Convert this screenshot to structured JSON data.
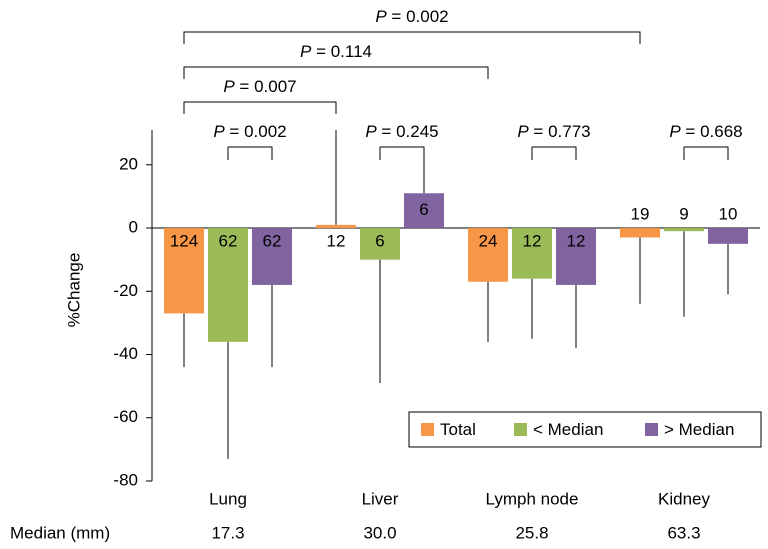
{
  "chart_data": {
    "type": "bar",
    "y_label": "%Change",
    "categories": [
      "Lung",
      "Liver",
      "Lymph node",
      "Kidney"
    ],
    "series": [
      {
        "name": "Total",
        "color": "#f79646",
        "values": [
          -27,
          1,
          -17,
          -3
        ],
        "errors": [
          17,
          30,
          19,
          21
        ],
        "n": [
          124,
          12,
          24,
          19
        ]
      },
      {
        "name": "< Median",
        "color": "#9bbb59",
        "values": [
          -36,
          -10,
          -16,
          -1
        ],
        "errors": [
          37,
          39,
          19,
          27
        ],
        "n": [
          62,
          6,
          12,
          9
        ]
      },
      {
        "name": "> Median",
        "color": "#8064a2",
        "values": [
          -18,
          11,
          -18,
          -5
        ],
        "errors": [
          26,
          11,
          20,
          16
        ],
        "n": [
          62,
          6,
          12,
          10
        ]
      }
    ],
    "ylim": [
      -80,
      31
    ],
    "yticks": [
      -80,
      -60,
      -40,
      -20,
      0,
      20
    ],
    "comparisons": [
      {
        "label": "P = 0.002",
        "category": "Lung",
        "series": [
          "< Median",
          "> Median"
        ]
      },
      {
        "label": "P = 0.245",
        "category": "Liver",
        "series": [
          "< Median",
          "> Median"
        ]
      },
      {
        "label": "P = 0.773",
        "category": "Lymph node",
        "series": [
          "< Median",
          "> Median"
        ]
      },
      {
        "label": "P = 0.668",
        "category": "Kidney",
        "series": [
          "< Median",
          "> Median"
        ]
      },
      {
        "label": "P = 0.007",
        "series": "Total",
        "categories": [
          "Lung",
          "Liver"
        ]
      },
      {
        "label": "P = 0.114",
        "series": "Total",
        "categories": [
          "Lung",
          "Lymph node"
        ]
      },
      {
        "label": "P = 0.002",
        "series": "Total",
        "categories": [
          "Lung",
          "Kidney"
        ]
      }
    ],
    "medians": {
      "label": "Median (mm)",
      "values": [
        17.3,
        30,
        25.8,
        63.3
      ],
      "value_labels": [
        "17.3",
        "30.0",
        "25.8",
        "63.3"
      ]
    },
    "legend": "lower right"
  }
}
